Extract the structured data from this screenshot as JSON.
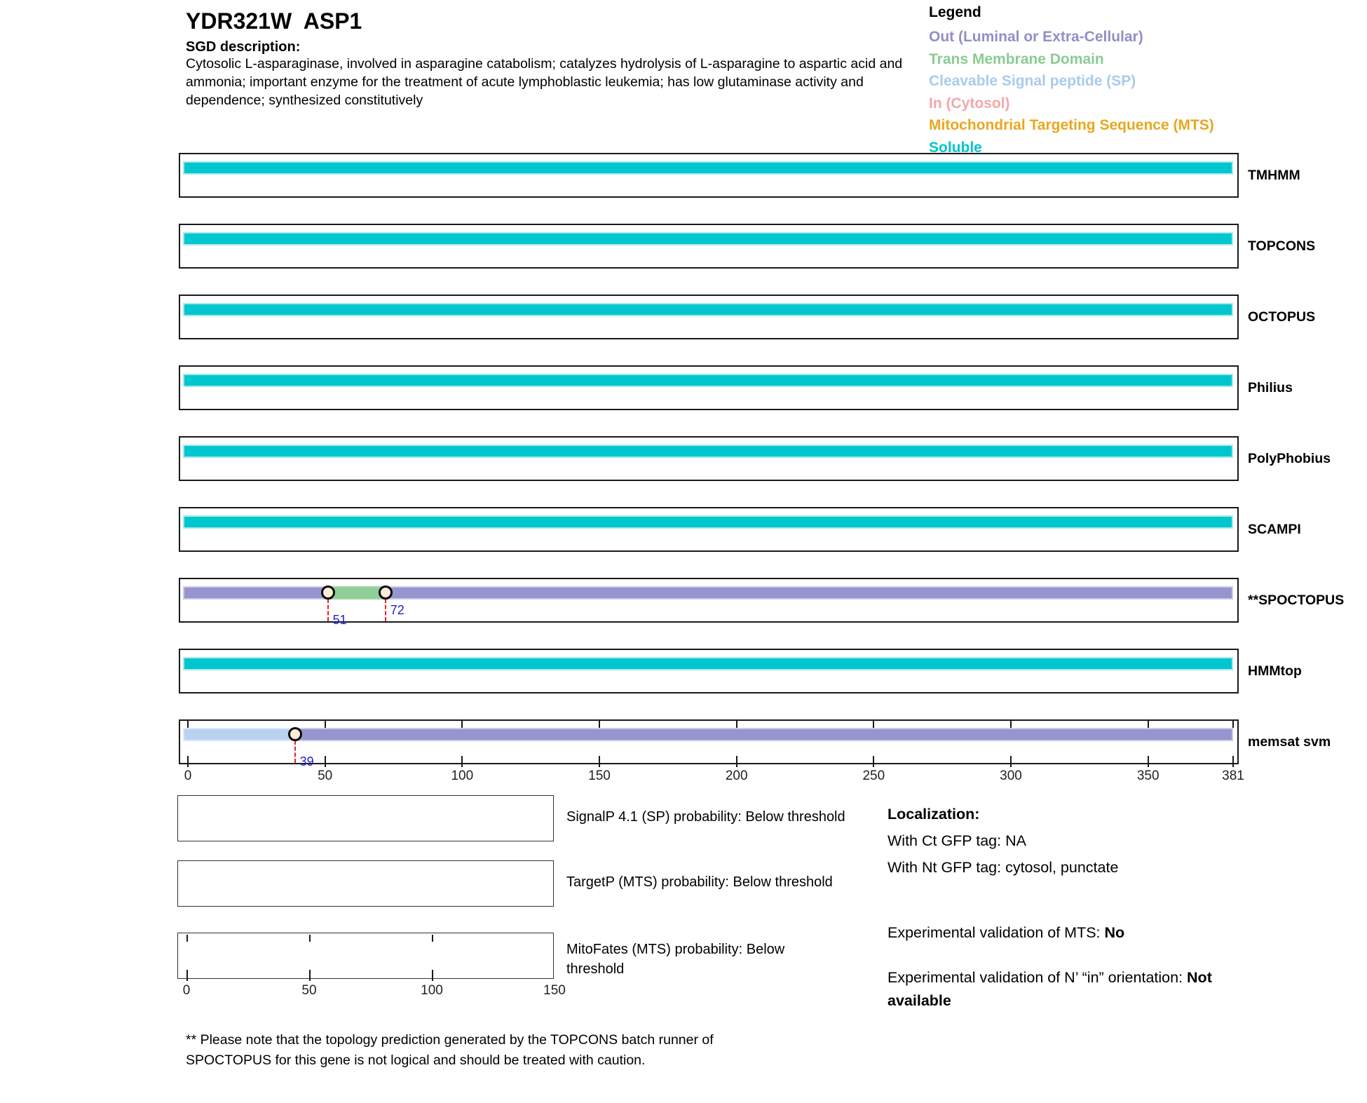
{
  "page": {
    "title": "YDR321W  ASP1",
    "sgd_label": "SGD description:",
    "description": "Cytosolic L-asparaginase, involved in asparagine catabolism; catalyzes hydrolysis of L-asparagine to aspartic acid and ammonia; important enzyme for the treatment of acute lymphoblastic leukemia; has low glutaminase activity and dependence; synthesized constitutively",
    "footnote": "** Please note that the topology prediction generated by the TOPCONS batch runner of SPOCTOPUS for this gene is not logical and should be treated with caution."
  },
  "legend": {
    "title": "Legend",
    "entries": [
      {
        "label": "Out (Luminal or Extra-Cellular)",
        "color": "#918FC8"
      },
      {
        "label": "Trans Membrane Domain",
        "color": "#8BCB92"
      },
      {
        "label": "Cleavable Signal peptide (SP)",
        "color": "#A9CBEE"
      },
      {
        "label": "In (Cytosol)",
        "color": "#F1A9A6"
      },
      {
        "label": "Mitochondrial Targeting Sequence (MTS)",
        "color": "#E8A71F"
      },
      {
        "label": "Soluble",
        "color": "#00C4CC"
      }
    ]
  },
  "chart_data": {
    "type": "bar",
    "subtype": "protein-topology-span-tracks",
    "title": "",
    "xlabel": "",
    "x_axis": {
      "min": 0,
      "max": 381,
      "ticks": [
        0,
        50,
        100,
        150,
        200,
        250,
        300,
        350,
        381
      ]
    },
    "palette": {
      "Soluble": "#00C6CE",
      "Out": "#9795CE",
      "TM": "#90CE97",
      "SP": "#B9D2F2"
    },
    "marker_style": {
      "boundary_line_color": "#E8202A",
      "position_label_color": "#2222CE",
      "marker_fill": "#FCEBD8"
    },
    "tracks": [
      {
        "name": "TMHMM",
        "segments": [
          {
            "start": 0,
            "end": 381,
            "type": "Soluble"
          }
        ]
      },
      {
        "name": "TOPCONS",
        "segments": [
          {
            "start": 0,
            "end": 381,
            "type": "Soluble"
          }
        ]
      },
      {
        "name": "OCTOPUS",
        "segments": [
          {
            "start": 0,
            "end": 381,
            "type": "Soluble"
          }
        ]
      },
      {
        "name": "Philius",
        "segments": [
          {
            "start": 0,
            "end": 381,
            "type": "Soluble"
          }
        ]
      },
      {
        "name": "PolyPhobius",
        "segments": [
          {
            "start": 0,
            "end": 381,
            "type": "Soluble"
          }
        ]
      },
      {
        "name": "SCAMPI",
        "segments": [
          {
            "start": 0,
            "end": 381,
            "type": "Soluble"
          }
        ]
      },
      {
        "name": "**SPOCTOPUS",
        "segments": [
          {
            "start": 0,
            "end": 51,
            "type": "Out"
          },
          {
            "start": 51,
            "end": 72,
            "type": "TM"
          },
          {
            "start": 72,
            "end": 381,
            "type": "Out"
          }
        ],
        "markers": [
          {
            "pos": 51,
            "label": "51",
            "level": "low"
          },
          {
            "pos": 72,
            "label": "72",
            "level": "high"
          }
        ]
      },
      {
        "name": "HMMtop",
        "segments": [
          {
            "start": 0,
            "end": 381,
            "type": "Soluble"
          }
        ]
      },
      {
        "name": "memsat svm",
        "ruler": true,
        "segments": [
          {
            "start": 0,
            "end": 39,
            "type": "SP"
          },
          {
            "start": 39,
            "end": 381,
            "type": "Out"
          }
        ],
        "markers": [
          {
            "pos": 39,
            "label": "39",
            "level": "low"
          }
        ]
      }
    ],
    "probability_plots": [
      {
        "label": "SignalP 4.1 (SP) probability: Below threshold"
      },
      {
        "label": "TargetP (MTS) probability: Below threshold"
      },
      {
        "label": "MitoFates (MTS) probability: Below threshold",
        "axis": {
          "min": 0,
          "max": 150,
          "ticks": [
            0,
            50,
            100,
            150
          ]
        }
      }
    ]
  },
  "localization": {
    "heading": "Localization:",
    "lines": [
      "With Ct GFP tag: NA",
      "With Nt GFP tag: cytosol, punctate"
    ],
    "mts_validation": {
      "prefix": "Experimental validation of MTS: ",
      "value": "No"
    },
    "orientation_validation": {
      "prefix": "Experimental validation of N’ “in” orientation: ",
      "value": "Not available"
    }
  }
}
